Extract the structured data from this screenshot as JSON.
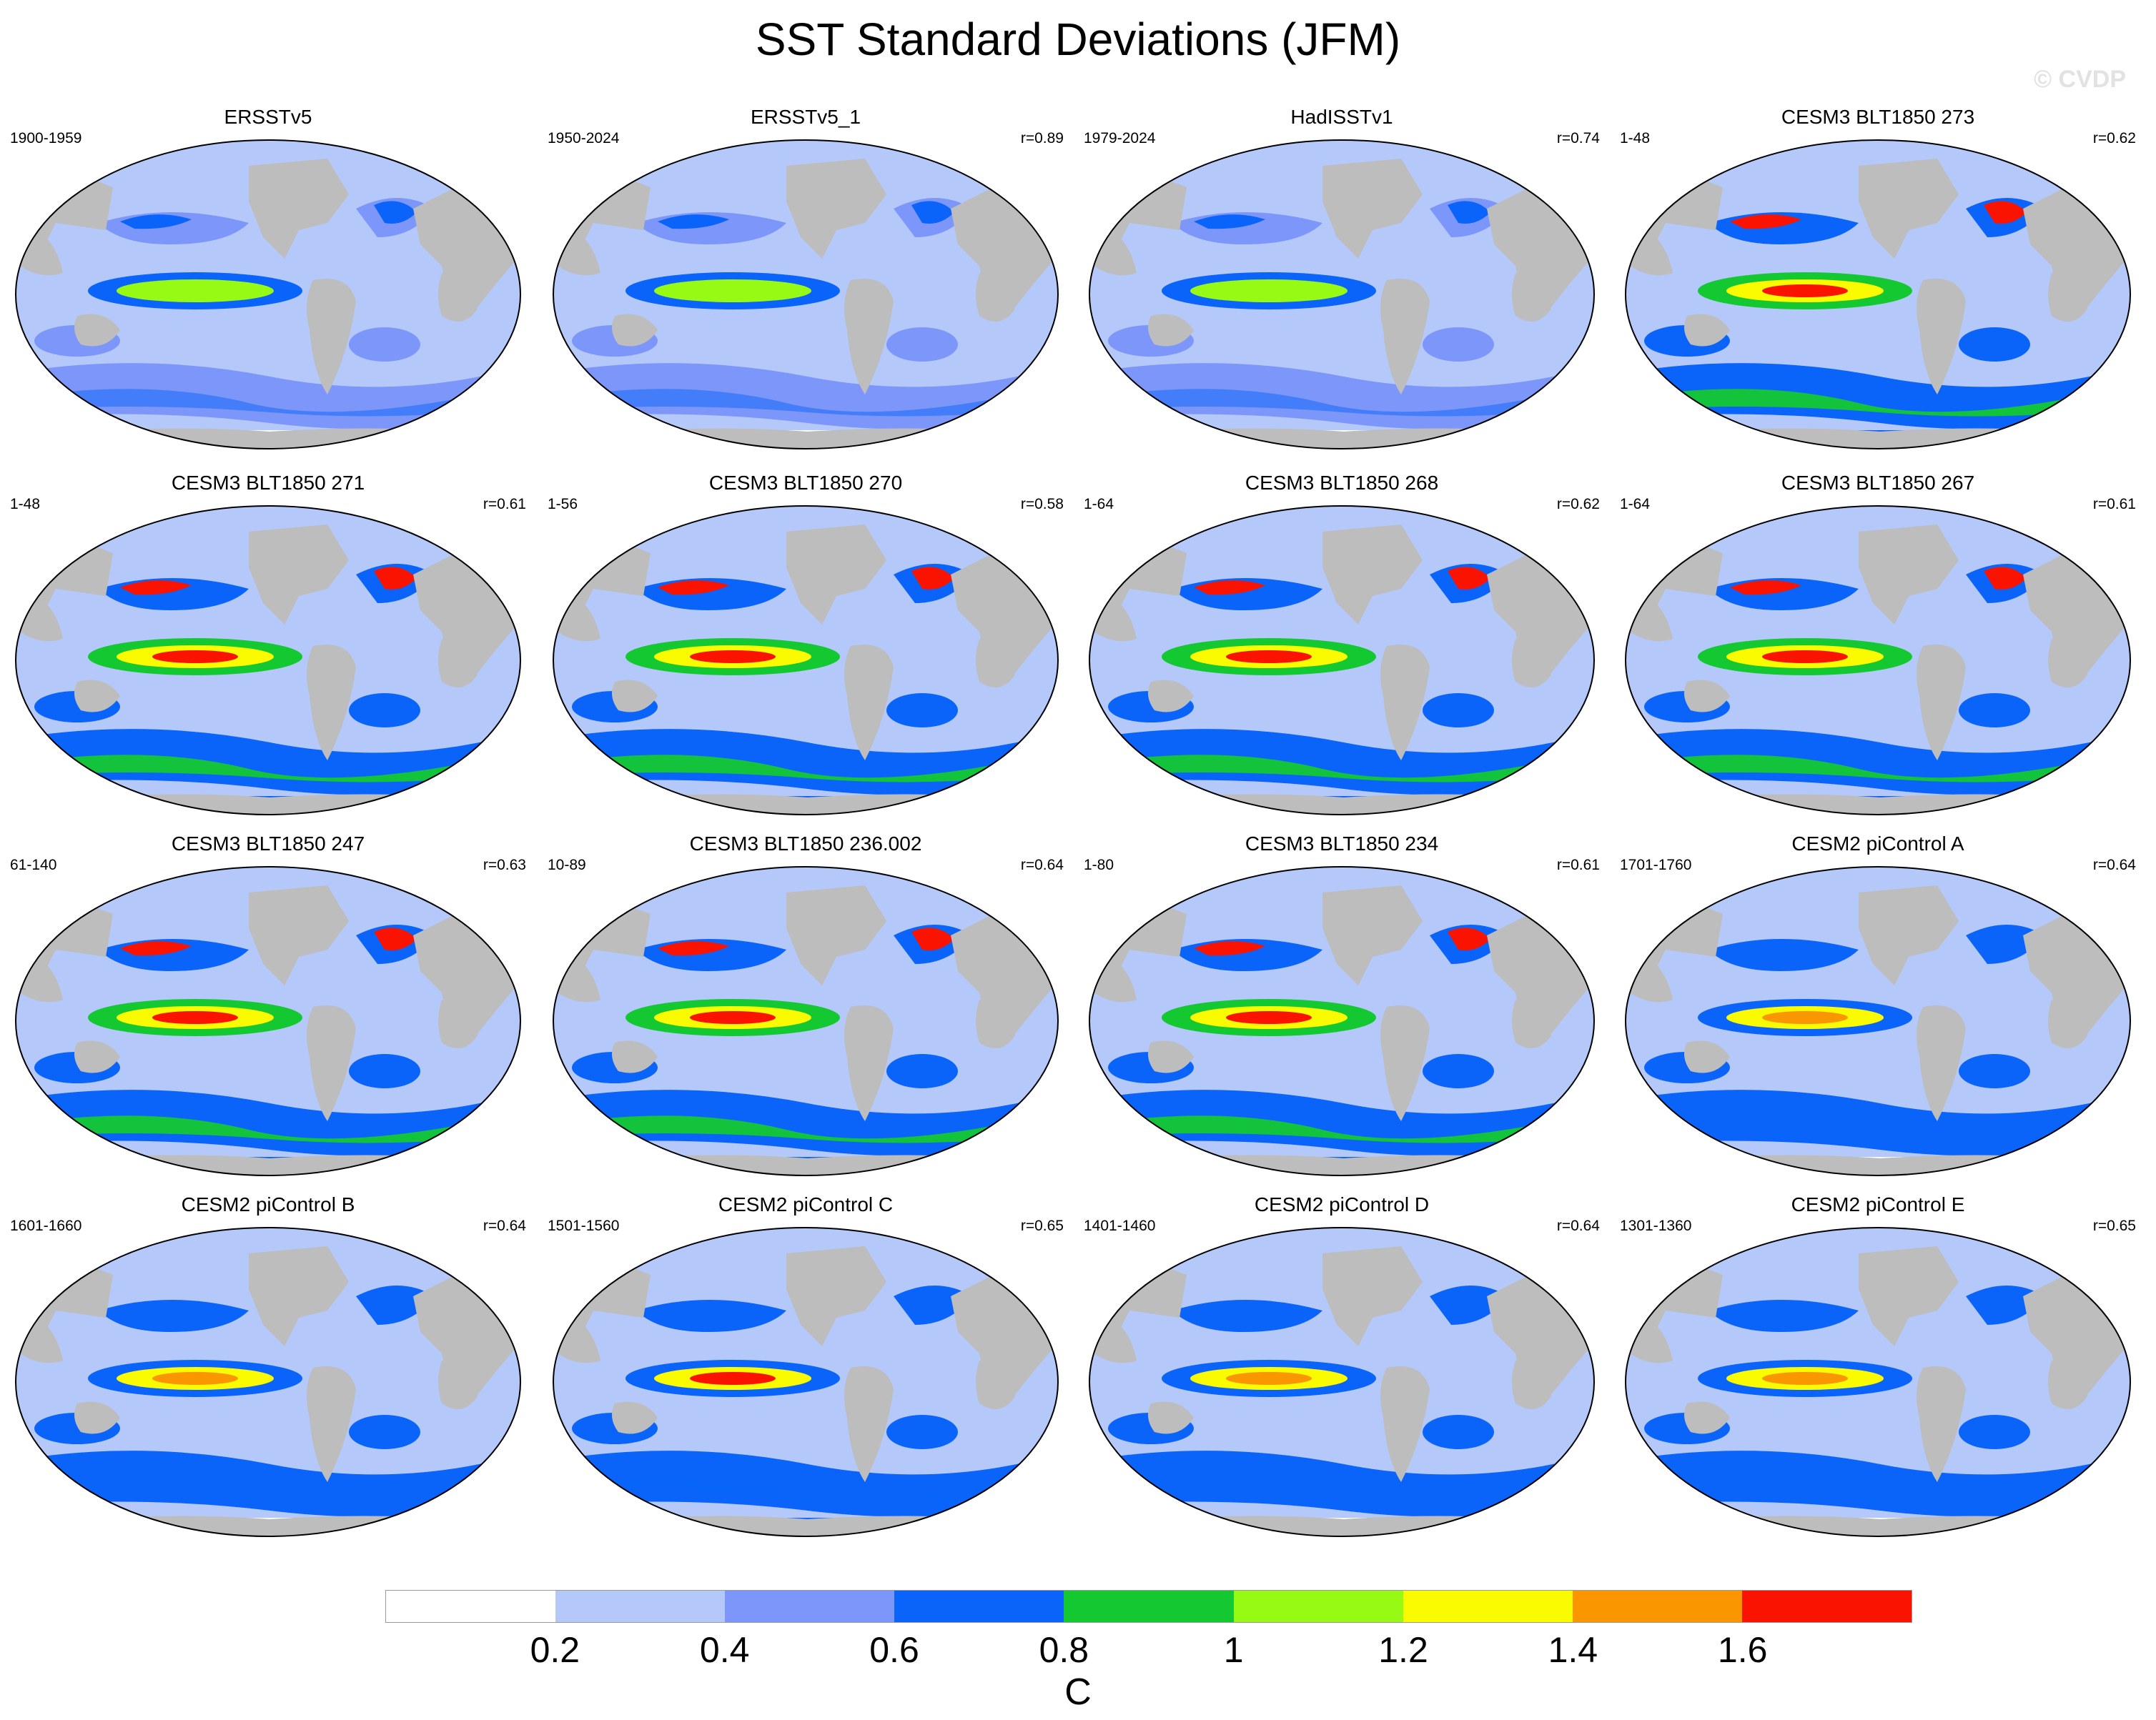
{
  "title": "SST Standard Deviations (JFM)",
  "watermark": "© CVDP",
  "panels": [
    {
      "name": "ERSSTv5",
      "years": "1900-1959",
      "r": "",
      "intensity": 0.45
    },
    {
      "name": "ERSSTv5_1",
      "years": "1950-2024",
      "r": "r=0.89",
      "intensity": 0.35
    },
    {
      "name": "HadISSTv1",
      "years": "1979-2024",
      "r": "r=0.74",
      "intensity": 0.3
    },
    {
      "name": "CESM3 BLT1850 273",
      "years": "1-48",
      "r": "r=0.62",
      "intensity": 0.75
    },
    {
      "name": "CESM3 BLT1850 271",
      "years": "1-48",
      "r": "r=0.61",
      "intensity": 0.8
    },
    {
      "name": "CESM3 BLT1850 270",
      "years": "1-56",
      "r": "r=0.58",
      "intensity": 0.8
    },
    {
      "name": "CESM3 BLT1850 268",
      "years": "1-64",
      "r": "r=0.62",
      "intensity": 0.8
    },
    {
      "name": "CESM3 BLT1850 267",
      "years": "1-64",
      "r": "r=0.61",
      "intensity": 0.8
    },
    {
      "name": "CESM3 BLT1850 247",
      "years": "61-140",
      "r": "r=0.63",
      "intensity": 0.85
    },
    {
      "name": "CESM3 BLT1850 236.002",
      "years": "10-89",
      "r": "r=0.64",
      "intensity": 0.85
    },
    {
      "name": "CESM3 BLT1850 234",
      "years": "1-80",
      "r": "r=0.61",
      "intensity": 0.85
    },
    {
      "name": "CESM2 piControl A",
      "years": "1701-1760",
      "r": "r=0.64",
      "intensity": 0.6
    },
    {
      "name": "CESM2 piControl B",
      "years": "1601-1660",
      "r": "r=0.64",
      "intensity": 0.55
    },
    {
      "name": "CESM2 piControl C",
      "years": "1501-1560",
      "r": "r=0.65",
      "intensity": 0.65
    },
    {
      "name": "CESM2 piControl D",
      "years": "1401-1460",
      "r": "r=0.64",
      "intensity": 0.6
    },
    {
      "name": "CESM2 piControl E",
      "years": "1301-1360",
      "r": "r=0.65",
      "intensity": 0.55
    }
  ],
  "colorbar": {
    "colors": [
      "#ffffff",
      "#b4c8fa",
      "#7d96fa",
      "#0a64fa",
      "#14c832",
      "#96fa14",
      "#fafa00",
      "#fa9600",
      "#fa1400"
    ],
    "labels": [
      "0.2",
      "0.4",
      "0.6",
      "0.8",
      "1",
      "1.2",
      "1.4",
      "1.6"
    ],
    "unit": "C"
  }
}
